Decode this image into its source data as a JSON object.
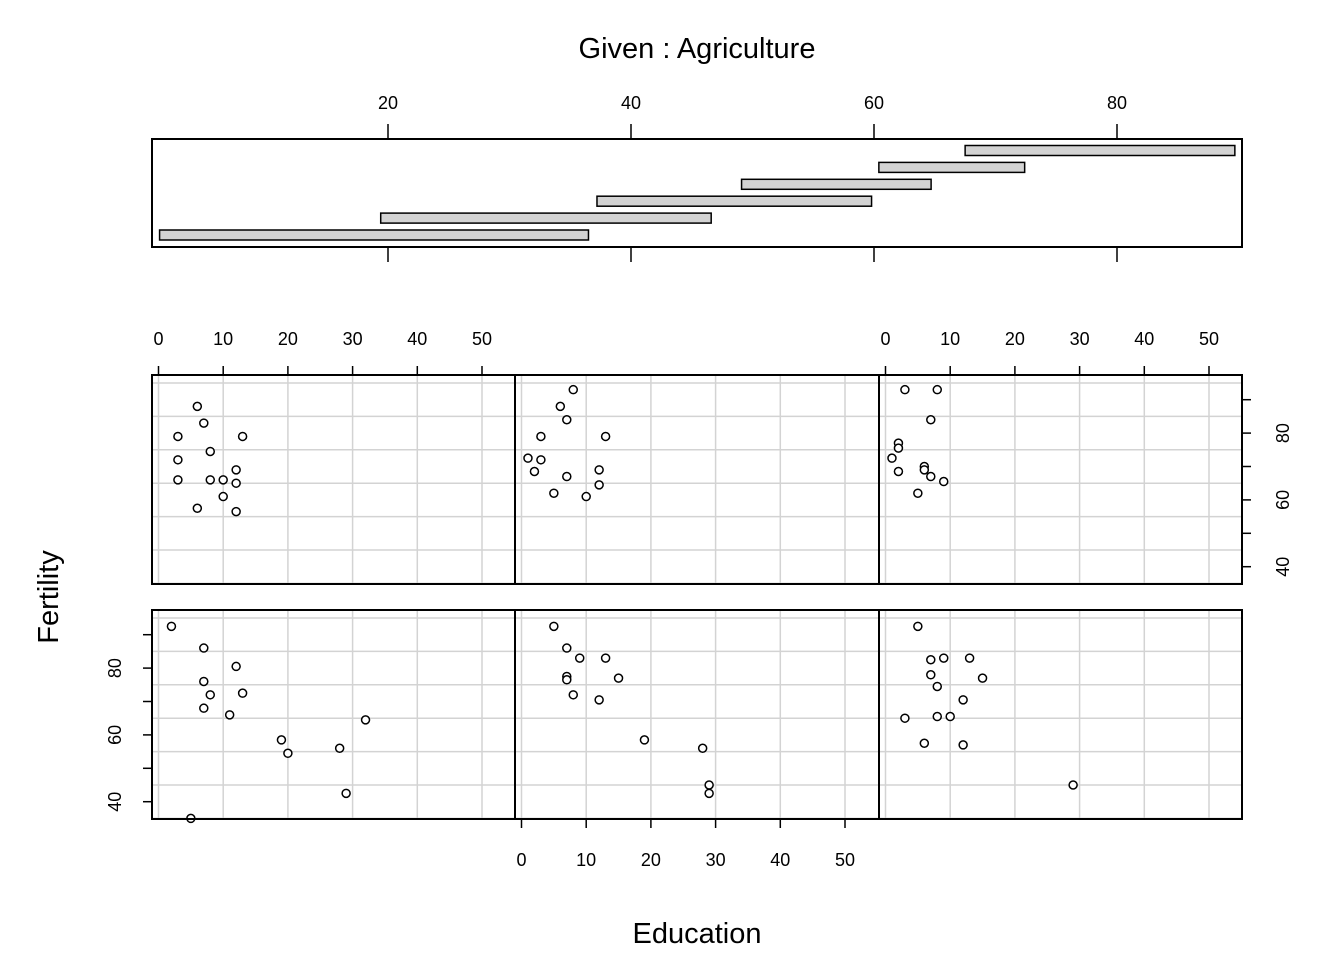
{
  "chart_data": {
    "type": "scatter",
    "title": "Given : Agriculture",
    "xlabel": "Education",
    "ylabel": "Fertility",
    "xlim": [
      -1,
      55
    ],
    "ylim": [
      33,
      95
    ],
    "x_ticks": [
      0,
      10,
      20,
      30,
      40,
      50
    ],
    "y_ticks": [
      40,
      60,
      80
    ],
    "grid": true,
    "given": {
      "variable": "Agriculture",
      "xlim": [
        0,
        90
      ],
      "ticks": [
        20,
        40,
        60,
        80
      ],
      "intervals": [
        [
          1.2,
          36.5
        ],
        [
          19.4,
          46.6
        ],
        [
          37.2,
          59.8
        ],
        [
          49.1,
          64.7
        ],
        [
          60.4,
          72.4
        ],
        [
          67.5,
          89.7
        ]
      ]
    },
    "panels": [
      {
        "interval_index": 0,
        "points": [
          [
            2,
            92.5
          ],
          [
            5,
            35
          ],
          [
            7,
            86
          ],
          [
            7,
            68
          ],
          [
            7,
            76
          ],
          [
            8,
            72
          ],
          [
            11,
            66
          ],
          [
            12,
            80.5
          ],
          [
            13,
            72.5
          ],
          [
            19,
            58.5
          ],
          [
            20,
            54.5
          ],
          [
            28,
            56
          ],
          [
            29,
            42.5
          ],
          [
            32,
            64.5
          ]
        ]
      },
      {
        "interval_index": 1,
        "points": [
          [
            5,
            92.5
          ],
          [
            7,
            86
          ],
          [
            7,
            77.5
          ],
          [
            7,
            76.5
          ],
          [
            8,
            72
          ],
          [
            9,
            83
          ],
          [
            12,
            70.5
          ],
          [
            13,
            83
          ],
          [
            15,
            77
          ],
          [
            19,
            58.5
          ],
          [
            28,
            56
          ],
          [
            29,
            45
          ],
          [
            29,
            42.5
          ]
        ]
      },
      {
        "interval_index": 2,
        "points": [
          [
            5,
            92.5
          ],
          [
            3,
            65
          ],
          [
            6,
            57.5
          ],
          [
            7,
            82.5
          ],
          [
            7,
            78
          ],
          [
            8,
            74.5
          ],
          [
            8,
            65.5
          ],
          [
            9,
            83
          ],
          [
            10,
            65.5
          ],
          [
            12,
            70.5
          ],
          [
            12,
            57
          ],
          [
            13,
            83
          ],
          [
            15,
            77
          ],
          [
            29,
            45
          ]
        ]
      },
      {
        "interval_index": 3,
        "points": [
          [
            6,
            88
          ],
          [
            7,
            83
          ],
          [
            3,
            79
          ],
          [
            8,
            74.5
          ],
          [
            3,
            72
          ],
          [
            12,
            69
          ],
          [
            8,
            66
          ],
          [
            10,
            66
          ],
          [
            12,
            65
          ],
          [
            3,
            66
          ],
          [
            10,
            61
          ],
          [
            6,
            57.5
          ],
          [
            12,
            56.5
          ],
          [
            13,
            79
          ]
        ]
      },
      {
        "interval_index": 4,
        "points": [
          [
            8,
            93
          ],
          [
            6,
            88
          ],
          [
            7,
            84
          ],
          [
            3,
            79
          ],
          [
            13,
            79
          ],
          [
            1,
            72.5
          ],
          [
            3,
            72
          ],
          [
            2,
            68.5
          ],
          [
            12,
            69
          ],
          [
            7,
            67
          ],
          [
            12,
            64.5
          ],
          [
            5,
            62
          ],
          [
            10,
            61
          ]
        ]
      },
      {
        "interval_index": 5,
        "points": [
          [
            3,
            93
          ],
          [
            8,
            93
          ],
          [
            7,
            84
          ],
          [
            2,
            77
          ],
          [
            2,
            75.5
          ],
          [
            1,
            72.5
          ],
          [
            6,
            70
          ],
          [
            6,
            69
          ],
          [
            2,
            68.5
          ],
          [
            7,
            67
          ],
          [
            9,
            65.5
          ],
          [
            5,
            62
          ]
        ]
      }
    ]
  }
}
